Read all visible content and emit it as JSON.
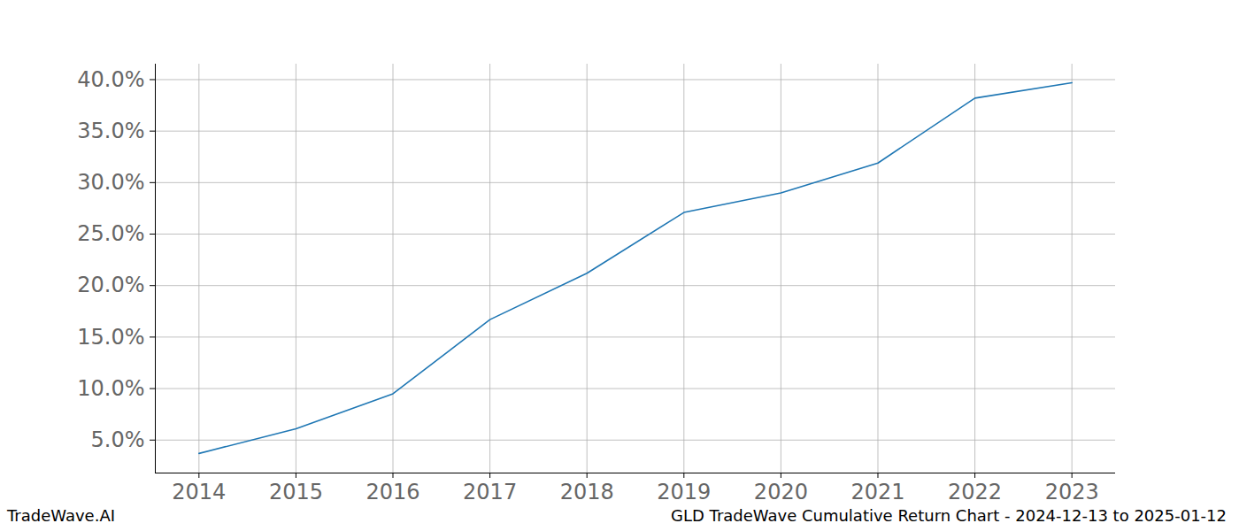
{
  "chart_data": {
    "type": "line",
    "title": "GLD TradeWave Cumulative Return Chart - 2024-12-13 to 2025-01-12",
    "caption": "TradeWave.AI",
    "x": [
      2014,
      2015,
      2016,
      2017,
      2018,
      2019,
      2020,
      2021,
      2022,
      2023
    ],
    "series": [
      {
        "name": "GLD",
        "color": "#1f77b4",
        "values": [
          3.7,
          6.1,
          9.5,
          16.7,
          21.2,
          27.1,
          29.0,
          31.9,
          38.2,
          39.7
        ]
      }
    ],
    "xlim": [
      2013.55,
      2023.45
    ],
    "xticks": [
      2014,
      2015,
      2016,
      2017,
      2018,
      2019,
      2020,
      2021,
      2022,
      2023
    ],
    "ylim": [
      1.8,
      41.5
    ],
    "yticks": [
      {
        "value": 5,
        "label": "5.0%"
      },
      {
        "value": 10,
        "label": "10.0%"
      },
      {
        "value": 15,
        "label": "15.0%"
      },
      {
        "value": 20,
        "label": "20.0%"
      },
      {
        "value": 25,
        "label": "25.0%"
      },
      {
        "value": 30,
        "label": "30.0%"
      },
      {
        "value": 35,
        "label": "35.0%"
      },
      {
        "value": 40,
        "label": "40.0%"
      }
    ],
    "grid": true
  }
}
